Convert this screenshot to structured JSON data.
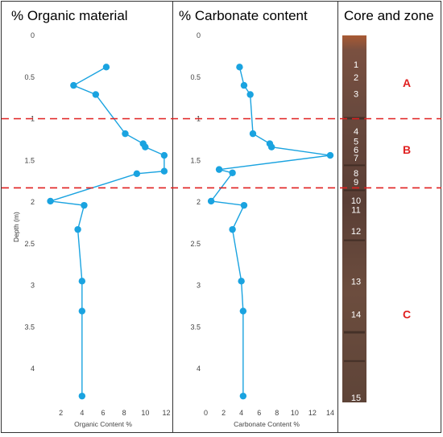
{
  "panels": {
    "organic_title": "% Organic material",
    "carbonate_title": "% Carbonate content",
    "core_title": "Core and zone"
  },
  "chart_data": [
    {
      "type": "line",
      "title": "% Organic material",
      "xlabel": "Organic Content %",
      "ylabel": "Depth (m)",
      "xlim": [
        0,
        12
      ],
      "ylim": [
        0,
        4.35
      ],
      "y_inverted": true,
      "xticks": [
        "2",
        "4",
        "6",
        "8",
        "10",
        "12"
      ],
      "yticks": [
        "0",
        "0.5",
        "1",
        "1.5",
        "2",
        "2.5",
        "3",
        "3.5",
        "4"
      ],
      "series": [
        {
          "x": [
            6.3,
            3.2,
            5.3,
            8.1,
            9.8,
            10.0,
            11.8,
            11.8,
            9.2,
            1.0,
            4.2,
            3.6,
            4.0,
            4.0,
            4.0
          ],
          "y": [
            0.38,
            0.6,
            0.71,
            1.18,
            1.3,
            1.34,
            1.44,
            1.63,
            1.66,
            1.99,
            2.04,
            2.33,
            2.95,
            3.31,
            4.33
          ],
          "color": "#1aa3e0"
        }
      ]
    },
    {
      "type": "line",
      "title": "% Carbonate content",
      "xlabel": "Carbonate Content %",
      "ylabel": "",
      "xlim": [
        0,
        14
      ],
      "ylim": [
        0,
        4.35
      ],
      "y_inverted": true,
      "xticks": [
        "0",
        "2",
        "4",
        "6",
        "8",
        "10",
        "12",
        "14"
      ],
      "yticks": [
        "0",
        "0.5",
        "1",
        "1.5",
        "2",
        "2.5",
        "3",
        "3.5",
        "4"
      ],
      "series": [
        {
          "x": [
            3.8,
            4.3,
            5.0,
            5.3,
            7.2,
            7.4,
            14.0,
            1.5,
            3.0,
            0.6,
            4.3,
            3.0,
            4.0,
            4.2,
            4.2
          ],
          "y": [
            0.38,
            0.6,
            0.71,
            1.18,
            1.3,
            1.34,
            1.44,
            1.61,
            1.65,
            1.99,
            2.04,
            2.33,
            2.95,
            3.31,
            4.33
          ],
          "color": "#1aa3e0"
        }
      ]
    }
  ],
  "zone_boundaries": [
    1.0,
    1.83
  ],
  "boundary_color": "#e02020",
  "core": {
    "sample_numbers": [
      "1",
      "2",
      "3",
      "4",
      "5",
      "6",
      "7",
      "8",
      "9",
      "10",
      "11",
      "12",
      "13",
      "14",
      "15"
    ],
    "sample_depths": [
      0.35,
      0.5,
      0.7,
      1.15,
      1.27,
      1.37,
      1.47,
      1.65,
      1.76,
      1.98,
      2.09,
      2.35,
      2.95,
      3.35,
      4.35
    ],
    "zones": [
      {
        "label": "A",
        "depth": 0.57
      },
      {
        "label": "B",
        "depth": 1.37
      },
      {
        "label": "C",
        "depth": 3.35
      }
    ],
    "zone_label_color": "#e02020"
  }
}
